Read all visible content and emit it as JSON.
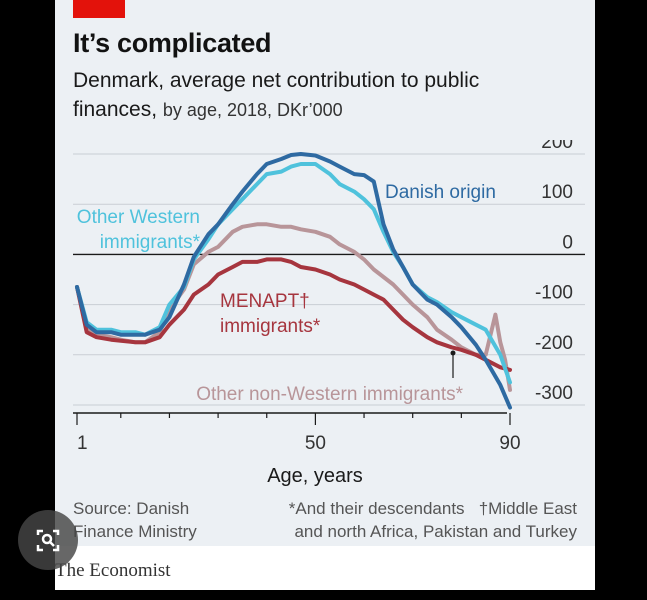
{
  "header": {
    "title": "It’s complicated",
    "subtitle_main": "Denmark, average net contribution to public finances,",
    "subtitle_light": "by age, 2018, DKr’000"
  },
  "footer": {
    "source_line1": "Source: Danish",
    "source_line2": "Finance Ministry",
    "note_line1": "*And their descendants   †Middle East",
    "note_line2": "and north Africa, Pakistan and Turkey"
  },
  "brand": {
    "name": "The Economist"
  },
  "overlay": {
    "icon": "lens-search-icon"
  },
  "chart_data": {
    "type": "line",
    "xlabel": "Age, years",
    "ylabel": "",
    "xlim": [
      0,
      95
    ],
    "ylim": [
      -300,
      200
    ],
    "x_ticks": [
      1,
      50,
      90
    ],
    "y_ticks": [
      200,
      100,
      0,
      -100,
      -200,
      -300
    ],
    "zero_line": true,
    "grid": true,
    "series": [
      {
        "name": "Danish origin",
        "color": "#2e6aa2",
        "label_lines": [
          "Danish origin"
        ],
        "x": [
          1,
          3,
          5,
          8,
          10,
          13,
          15,
          18,
          20,
          23,
          25,
          28,
          30,
          33,
          35,
          38,
          40,
          43,
          45,
          47,
          50,
          53,
          55,
          58,
          60,
          62,
          64,
          66,
          68,
          70,
          73,
          75,
          78,
          80,
          83,
          85,
          88,
          90
        ],
        "y": [
          -65,
          -140,
          -155,
          -155,
          -160,
          -160,
          -160,
          -150,
          -125,
          -60,
          -5,
          40,
          60,
          100,
          125,
          160,
          180,
          190,
          198,
          200,
          197,
          185,
          175,
          160,
          158,
          145,
          60,
          10,
          -25,
          -60,
          -90,
          -100,
          -125,
          -145,
          -180,
          -210,
          -260,
          -305
        ]
      },
      {
        "name": "Other Western immigrants*",
        "color": "#4fc2dc",
        "label_lines": [
          "Other Western",
          "immigrants*"
        ],
        "x": [
          1,
          3,
          5,
          8,
          10,
          13,
          15,
          18,
          20,
          23,
          25,
          28,
          30,
          33,
          35,
          38,
          40,
          43,
          45,
          47,
          50,
          53,
          55,
          58,
          60,
          62,
          64,
          66,
          68,
          70,
          73,
          75,
          78,
          80,
          83,
          85,
          88,
          90
        ],
        "y": [
          -65,
          -135,
          -150,
          -150,
          -155,
          -155,
          -160,
          -145,
          -100,
          -65,
          -10,
          30,
          60,
          90,
          110,
          140,
          160,
          165,
          175,
          180,
          180,
          160,
          140,
          125,
          110,
          90,
          45,
          5,
          -25,
          -60,
          -85,
          -95,
          -115,
          -125,
          -140,
          -150,
          -200,
          -255
        ]
      },
      {
        "name": "Other non-Western immigrants*",
        "color": "#b89599",
        "label_lines": [
          "Other non-Western immigrants*"
        ],
        "x": [
          1,
          3,
          5,
          8,
          10,
          13,
          15,
          18,
          20,
          23,
          25,
          28,
          30,
          33,
          35,
          38,
          40,
          43,
          45,
          47,
          50,
          53,
          55,
          58,
          60,
          62,
          64,
          66,
          68,
          70,
          73,
          75,
          78,
          80,
          83,
          85,
          87,
          88,
          89,
          90
        ],
        "y": [
          -65,
          -145,
          -160,
          -165,
          -170,
          -175,
          -175,
          -155,
          -110,
          -70,
          -20,
          5,
          15,
          45,
          55,
          60,
          60,
          55,
          55,
          50,
          45,
          35,
          20,
          5,
          -10,
          -30,
          -45,
          -60,
          -80,
          -100,
          -125,
          -150,
          -170,
          -185,
          -200,
          -200,
          -120,
          -175,
          -210,
          -270
        ]
      },
      {
        "name": "MENAPT† immigrants*",
        "color": "#a6353e",
        "label_lines": [
          "MENAPT†",
          "immigrants*"
        ],
        "x": [
          1,
          3,
          5,
          8,
          10,
          13,
          15,
          18,
          20,
          23,
          25,
          28,
          30,
          33,
          35,
          38,
          40,
          43,
          45,
          47,
          50,
          53,
          55,
          58,
          60,
          62,
          64,
          66,
          68,
          70,
          73,
          75,
          78,
          80,
          83,
          85,
          88,
          90
        ],
        "y": [
          -65,
          -155,
          -165,
          -170,
          -172,
          -175,
          -175,
          -165,
          -140,
          -110,
          -80,
          -60,
          -40,
          -25,
          -15,
          -15,
          -10,
          -10,
          -15,
          -25,
          -30,
          -40,
          -50,
          -60,
          -70,
          -80,
          -90,
          -110,
          -130,
          -145,
          -165,
          -175,
          -185,
          -190,
          -200,
          -210,
          -225,
          -230
        ]
      }
    ]
  }
}
